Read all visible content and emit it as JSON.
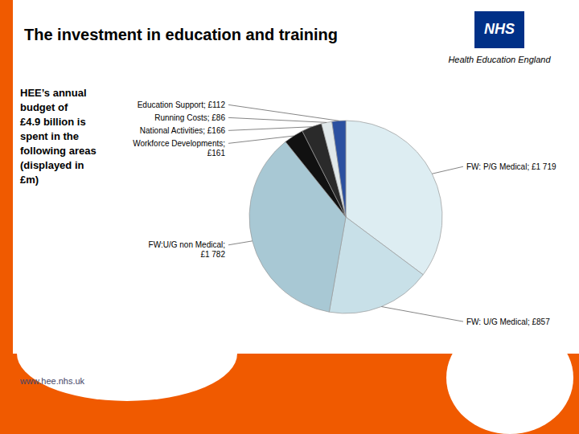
{
  "chart_data": {
    "type": "pie",
    "title": "The investment in education and training",
    "categories": [
      "FW: P/G Medical; £1 719",
      "FW: U/G Medical; £857",
      "FW:U/G non Medical;\n£1 782",
      "Workforce Developments;\n£161",
      "National Activities; £166",
      "Running Costs; £86",
      "Education Support; £112"
    ],
    "values": [
      1719,
      857,
      1782,
      161,
      166,
      86,
      112
    ],
    "colors": [
      "#ddedf2",
      "#c8e0e8",
      "#a8c8d4",
      "#111111",
      "#2a2a2a",
      "#e0e8ea",
      "#2b50a0"
    ],
    "annotations": [
      "HEE’s annual\nbudget of\n£4.9 billion is\nspent in the\nfollowing areas\n(displayed in\n£m)",
      "www.hee.nhs.uk",
      "NHS",
      "Health Education England"
    ]
  }
}
